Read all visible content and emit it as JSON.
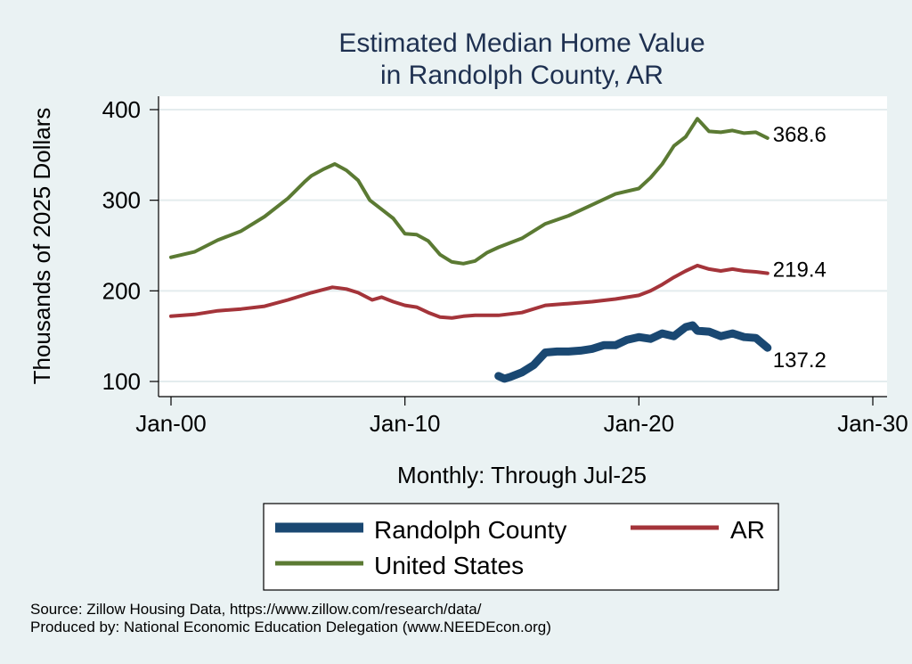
{
  "chart_data": {
    "type": "line",
    "title": [
      "Estimated Median Home Value",
      "in Randolph County, AR"
    ],
    "xlabel": "Monthly: Through Jul-25",
    "ylabel": "Thousands of 2025 Dollars",
    "xlim": [
      2000,
      2030
    ],
    "ylim": [
      100,
      400
    ],
    "x_ticks": [
      {
        "value": 2000,
        "label": "Jan-00"
      },
      {
        "value": 2010,
        "label": "Jan-10"
      },
      {
        "value": 2020,
        "label": "Jan-20"
      },
      {
        "value": 2030,
        "label": "Jan-30"
      }
    ],
    "y_ticks": [
      100,
      200,
      300,
      400
    ],
    "grid": true,
    "series": [
      {
        "name": "Randolph County",
        "color": "#1a4872",
        "end_label": "137.2",
        "points": [
          [
            2014.0,
            106
          ],
          [
            2014.25,
            103
          ],
          [
            2014.5,
            105
          ],
          [
            2015.0,
            110
          ],
          [
            2015.5,
            118
          ],
          [
            2016.0,
            132
          ],
          [
            2016.5,
            133
          ],
          [
            2017.0,
            133
          ],
          [
            2017.5,
            134
          ],
          [
            2018.0,
            136
          ],
          [
            2018.5,
            140
          ],
          [
            2019.0,
            140
          ],
          [
            2019.5,
            146
          ],
          [
            2020.0,
            149
          ],
          [
            2020.5,
            147
          ],
          [
            2021.0,
            153
          ],
          [
            2021.5,
            150
          ],
          [
            2022.0,
            160
          ],
          [
            2022.3,
            162
          ],
          [
            2022.5,
            156
          ],
          [
            2023.0,
            155
          ],
          [
            2023.5,
            150
          ],
          [
            2024.0,
            153
          ],
          [
            2024.5,
            149
          ],
          [
            2025.0,
            148
          ],
          [
            2025.5,
            137.2
          ]
        ]
      },
      {
        "name": "AR",
        "color": "#a4343a",
        "end_label": "219.4",
        "points": [
          [
            2000.0,
            172
          ],
          [
            2001.0,
            174
          ],
          [
            2002.0,
            178
          ],
          [
            2003.0,
            180
          ],
          [
            2004.0,
            183
          ],
          [
            2005.0,
            190
          ],
          [
            2006.0,
            198
          ],
          [
            2006.9,
            204
          ],
          [
            2007.5,
            202
          ],
          [
            2008.0,
            198
          ],
          [
            2008.6,
            190
          ],
          [
            2009.0,
            193
          ],
          [
            2009.5,
            188
          ],
          [
            2010.0,
            184
          ],
          [
            2010.5,
            182
          ],
          [
            2011.0,
            176
          ],
          [
            2011.5,
            171
          ],
          [
            2012.0,
            170
          ],
          [
            2012.5,
            172
          ],
          [
            2013.0,
            173
          ],
          [
            2013.5,
            173
          ],
          [
            2014.0,
            173
          ],
          [
            2015.0,
            176
          ],
          [
            2016.0,
            184
          ],
          [
            2017.0,
            186
          ],
          [
            2018.0,
            188
          ],
          [
            2019.0,
            191
          ],
          [
            2020.0,
            195
          ],
          [
            2020.5,
            200
          ],
          [
            2021.0,
            207
          ],
          [
            2021.5,
            215
          ],
          [
            2022.0,
            222
          ],
          [
            2022.5,
            228
          ],
          [
            2023.0,
            224
          ],
          [
            2023.5,
            222
          ],
          [
            2024.0,
            224
          ],
          [
            2024.5,
            222
          ],
          [
            2025.0,
            221
          ],
          [
            2025.5,
            219.4
          ]
        ]
      },
      {
        "name": "United States",
        "color": "#5b7a33",
        "end_label": "368.6",
        "points": [
          [
            2000.0,
            237
          ],
          [
            2001.0,
            243
          ],
          [
            2002.0,
            256
          ],
          [
            2003.0,
            266
          ],
          [
            2004.0,
            282
          ],
          [
            2005.0,
            302
          ],
          [
            2005.7,
            320
          ],
          [
            2006.0,
            327
          ],
          [
            2006.5,
            334
          ],
          [
            2007.0,
            340
          ],
          [
            2007.5,
            333
          ],
          [
            2008.0,
            322
          ],
          [
            2008.5,
            300
          ],
          [
            2009.0,
            290
          ],
          [
            2009.5,
            280
          ],
          [
            2010.0,
            263
          ],
          [
            2010.5,
            262
          ],
          [
            2011.0,
            255
          ],
          [
            2011.5,
            240
          ],
          [
            2012.0,
            232
          ],
          [
            2012.5,
            230
          ],
          [
            2013.0,
            233
          ],
          [
            2013.5,
            242
          ],
          [
            2014.0,
            248
          ],
          [
            2015.0,
            258
          ],
          [
            2016.0,
            274
          ],
          [
            2017.0,
            283
          ],
          [
            2018.0,
            295
          ],
          [
            2019.0,
            307
          ],
          [
            2020.0,
            313
          ],
          [
            2020.5,
            325
          ],
          [
            2021.0,
            340
          ],
          [
            2021.5,
            360
          ],
          [
            2022.0,
            370
          ],
          [
            2022.5,
            390
          ],
          [
            2023.0,
            376
          ],
          [
            2023.5,
            375
          ],
          [
            2024.0,
            377
          ],
          [
            2024.5,
            374
          ],
          [
            2025.0,
            375
          ],
          [
            2025.5,
            368.6
          ]
        ]
      }
    ]
  },
  "legend": {
    "items": [
      {
        "name": "Randolph County",
        "color": "#1a4872"
      },
      {
        "name": "AR",
        "color": "#a4343a"
      },
      {
        "name": "United States",
        "color": "#5b7a33"
      }
    ]
  },
  "footer": {
    "source": "Source: Zillow Housing Data, https://www.zillow.com/research/data/",
    "produced_by": "Produced by: National Economic Education Delegation (www.NEEDEcon.org)"
  }
}
